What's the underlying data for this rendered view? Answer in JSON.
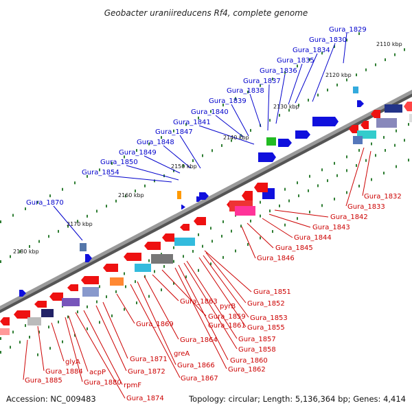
{
  "title": "Geobacter uraniireducens Rf4, complete genome",
  "footer": {
    "accession": "Accession: NC_009483",
    "summary": "Topology: circular; Length: 5,136,364 bp; Genes: 4,414"
  },
  "colors": {
    "forward_label": "#0000cc",
    "reverse_label": "#cc0000",
    "backbone": "#8a8a8a",
    "tick": "#2e7d32"
  },
  "ticks": [
    "2110 kbp",
    "2120 kbp",
    "2130 kbp",
    "2140 kbp",
    "2150 kbp",
    "2160 kbp",
    "2170 kbp",
    "2180 kbp"
  ],
  "forward_labels": [
    "Gura_1829",
    "Gura_1830",
    "Gura_1834",
    "Gura_1835",
    "Gura_1836",
    "Gura_1837",
    "Gura_1838",
    "Gura_1839",
    "Gura_1840",
    "Gura_1841",
    "Gura_1847",
    "Gura_1848",
    "Gura_1849",
    "Gura_1850",
    "Gura_1854",
    "Gura_1870"
  ],
  "reverse_labels": [
    "Gura_1832",
    "Gura_1833",
    "Gura_1842",
    "Gura_1843",
    "Gura_1844",
    "Gura_1845",
    "Gura_1846",
    "Gura_1851",
    "Gura_1852",
    "Gura_1853",
    "Gura_1855",
    "Gura_1857",
    "Gura_1858",
    "Gura_1860",
    "Gura_1862",
    "pyrB",
    "Gura_1859",
    "Gura_1861",
    "Gura_1863",
    "Gura_1864",
    "Gura_1866",
    "Gura_1867",
    "greA",
    "Gura_1869",
    "Gura_1871",
    "Gura_1872",
    "Gura_1874",
    "rpmF",
    "Gura_1880",
    "acpP",
    "glyA",
    "Gura_1884",
    "Gura_1885"
  ]
}
